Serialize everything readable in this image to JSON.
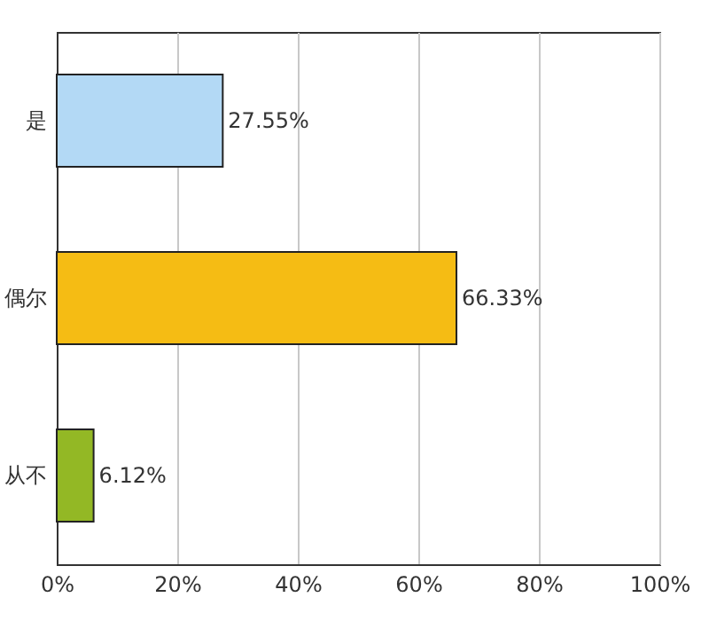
{
  "chart_data": {
    "type": "bar",
    "orientation": "horizontal",
    "categories": [
      "是",
      "偶尔",
      "从不"
    ],
    "values": [
      27.55,
      66.33,
      6.12
    ],
    "colors": [
      "#b3d9f5",
      "#f5bc14",
      "#93b825"
    ],
    "value_labels": [
      "27.55%",
      "66.33%",
      "6.12%"
    ],
    "xlim": [
      0,
      100
    ],
    "xticks": [
      {
        "value": 0,
        "label": "0%"
      },
      {
        "value": 20,
        "label": "20%"
      },
      {
        "value": 40,
        "label": "40%"
      },
      {
        "value": 60,
        "label": "60%"
      },
      {
        "value": 80,
        "label": "80%"
      },
      {
        "value": 100,
        "label": "100%"
      }
    ],
    "grid": "x"
  }
}
